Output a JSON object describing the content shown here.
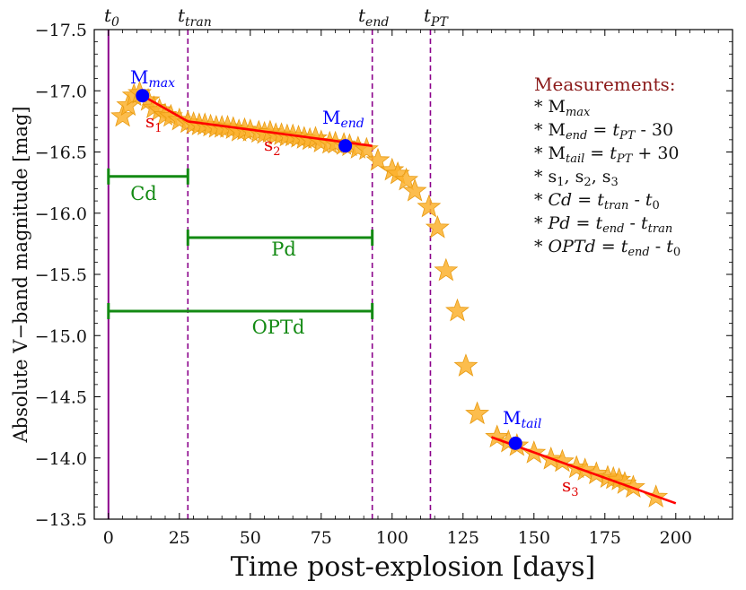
{
  "chart_data": {
    "type": "scatter",
    "xlabel": "Time post-explosion [days]",
    "ylabel": "Absolute V−band magnitude [mag]",
    "xlim": [
      -5,
      220
    ],
    "ylim": [
      -13.5,
      -17.5
    ],
    "xticks": [
      0,
      25,
      50,
      75,
      100,
      125,
      150,
      175,
      200
    ],
    "xtick_labels": [
      "0",
      "25",
      "50",
      "75",
      "100",
      "125",
      "150",
      "175",
      "200"
    ],
    "yticks": [
      -17.5,
      -17.0,
      -16.5,
      -16.0,
      -15.5,
      -15.0,
      -14.5,
      -14.0,
      -13.5
    ],
    "ytick_labels": [
      "−17.5",
      "−17.0",
      "−16.5",
      "−16.0",
      "−15.5",
      "−15.0",
      "−14.5",
      "−14.0",
      "−13.5"
    ],
    "observations": {
      "marker": "star",
      "color": "#fbb12e",
      "points": [
        [
          5,
          -16.79
        ],
        [
          7,
          -16.88
        ],
        [
          9,
          -16.96
        ],
        [
          11,
          -16.98
        ],
        [
          14,
          -16.92
        ],
        [
          16,
          -16.86
        ],
        [
          18,
          -16.84
        ],
        [
          20,
          -16.8
        ],
        [
          22,
          -16.79
        ],
        [
          25,
          -16.76
        ],
        [
          28,
          -16.74
        ],
        [
          30,
          -16.73
        ],
        [
          32,
          -16.72
        ],
        [
          34,
          -16.72
        ],
        [
          36,
          -16.71
        ],
        [
          38,
          -16.7
        ],
        [
          40,
          -16.7
        ],
        [
          42,
          -16.7
        ],
        [
          44,
          -16.69
        ],
        [
          46,
          -16.67
        ],
        [
          48,
          -16.68
        ],
        [
          50,
          -16.67
        ],
        [
          53,
          -16.66
        ],
        [
          55,
          -16.65
        ],
        [
          57,
          -16.66
        ],
        [
          59,
          -16.64
        ],
        [
          61,
          -16.64
        ],
        [
          63,
          -16.63
        ],
        [
          65,
          -16.63
        ],
        [
          67,
          -16.62
        ],
        [
          69,
          -16.61
        ],
        [
          71,
          -16.6
        ],
        [
          73,
          -16.61
        ],
        [
          75,
          -16.58
        ],
        [
          78,
          -16.57
        ],
        [
          80,
          -16.57
        ],
        [
          83,
          -16.56
        ],
        [
          85,
          -16.55
        ],
        [
          88,
          -16.53
        ],
        [
          91,
          -16.52
        ],
        [
          95,
          -16.43
        ],
        [
          100,
          -16.35
        ],
        [
          102,
          -16.32
        ],
        [
          105,
          -16.27
        ],
        [
          108,
          -16.18
        ],
        [
          113,
          -16.05
        ],
        [
          116,
          -15.88
        ],
        [
          119,
          -15.53
        ],
        [
          123,
          -15.2
        ],
        [
          126,
          -14.75
        ],
        [
          130,
          -14.36
        ],
        [
          137,
          -14.17
        ],
        [
          141,
          -14.13
        ],
        [
          144,
          -14.1
        ],
        [
          150,
          -14.04
        ],
        [
          156,
          -13.99
        ],
        [
          160,
          -13.97
        ],
        [
          165,
          -13.92
        ],
        [
          168,
          -13.9
        ],
        [
          172,
          -13.87
        ],
        [
          176,
          -13.84
        ],
        [
          178,
          -13.83
        ],
        [
          180,
          -13.82
        ],
        [
          182,
          -13.79
        ],
        [
          185,
          -13.76
        ],
        [
          193,
          -13.68
        ]
      ]
    },
    "fit_segments": {
      "color": "#ff0000",
      "lines": [
        {
          "name": "s1",
          "points": [
            [
              12,
              -16.96
            ],
            [
              28,
              -16.75
            ]
          ]
        },
        {
          "name": "s2",
          "points": [
            [
              28,
              -16.75
            ],
            [
              93,
              -16.55
            ]
          ]
        },
        {
          "name": "s3",
          "points": [
            [
              135,
              -14.17
            ],
            [
              200,
              -13.63
            ]
          ]
        }
      ]
    },
    "key_points": {
      "color": "#0000ff",
      "points": [
        {
          "name": "Mmax",
          "x": 12,
          "y": -16.96
        },
        {
          "name": "Mend",
          "x": 83.5,
          "y": -16.55
        },
        {
          "name": "Mtail",
          "x": 143.5,
          "y": -14.12
        }
      ]
    },
    "vertical_lines": [
      {
        "name": "t0",
        "x": 0,
        "color": "#8b008b",
        "style": "solid"
      },
      {
        "name": "ttran",
        "x": 28,
        "color": "#8b008b",
        "style": "dashed"
      },
      {
        "name": "tend",
        "x": 93,
        "color": "#8b008b",
        "style": "dashed"
      },
      {
        "name": "tPT",
        "x": 113.5,
        "color": "#8b008b",
        "style": "dashed"
      }
    ],
    "durations": {
      "color": "#138a13",
      "bars": [
        {
          "name": "Cd",
          "x0": 0,
          "x1": 28,
          "y": -16.3
        },
        {
          "name": "Pd",
          "x0": 28,
          "x1": 93,
          "y": -15.8
        },
        {
          "name": "OPTd",
          "x0": 0,
          "x1": 93,
          "y": -15.2
        }
      ]
    }
  },
  "labels": {
    "t0": {
      "base": "t",
      "sub": "0"
    },
    "ttran": {
      "base": "t",
      "sub": "tran"
    },
    "tend": {
      "base": "t",
      "sub": "end"
    },
    "tpt": {
      "base": "t",
      "sub": "PT"
    },
    "mmax": {
      "base": "M",
      "sub": "max"
    },
    "mend": {
      "base": "M",
      "sub": "end"
    },
    "mtail": {
      "base": "M",
      "sub": "tail"
    },
    "s1": {
      "base": "s",
      "sub": "1"
    },
    "s2": {
      "base": "s",
      "sub": "2"
    },
    "s3": {
      "base": "s",
      "sub": "3"
    },
    "cd": "Cd",
    "pd": "Pd",
    "optd": "OPTd"
  },
  "measurements": {
    "title": "Measurements:",
    "bullet": "*",
    "m_max": {
      "base": "M",
      "sub": "max"
    },
    "m_end": {
      "base": "M",
      "sub": "end",
      "eq": " = ",
      "t": "t",
      "tsub": "PT",
      "op": " - 30"
    },
    "m_tail": {
      "base": "M",
      "sub": "tail",
      "eq": " = ",
      "t": "t",
      "tsub": "PT",
      "op": " + 30"
    },
    "slopes": {
      "s": "s",
      "sub1": "1",
      "sub2": "2",
      "sub3": "3",
      "comma": ", "
    },
    "cd_eq": {
      "name": "Cd",
      "eq": " = ",
      "t1": "t",
      "t1sub": "tran",
      "minus": " - ",
      "t2": "t",
      "t2sub": "0"
    },
    "pd_eq": {
      "name": "Pd",
      "eq": " = ",
      "t1": "t",
      "t1sub": "end",
      "minus": " - ",
      "t2": "t",
      "t2sub": "tran"
    },
    "optd_eq": {
      "name": "OPTd",
      "eq": " = ",
      "t1": "t",
      "t1sub": "end",
      "minus": " - ",
      "t2": "t",
      "t2sub": "0"
    }
  }
}
